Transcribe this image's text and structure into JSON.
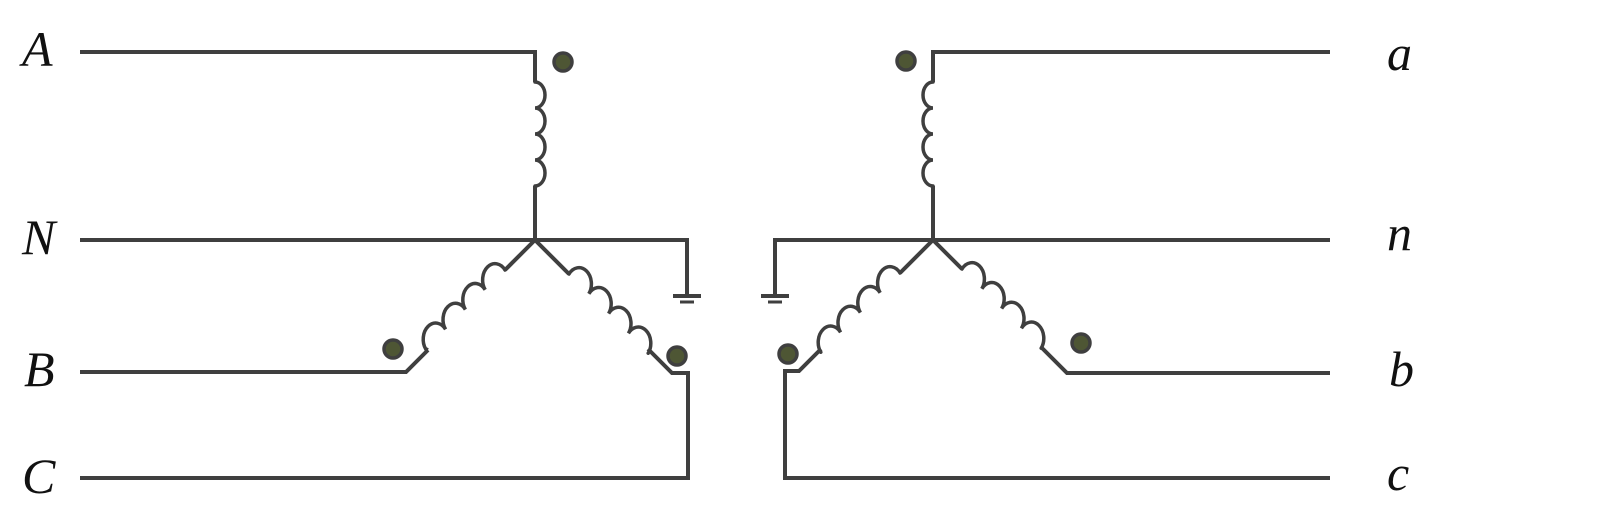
{
  "diagram": {
    "primary_labels": {
      "A": "A",
      "N": "N",
      "B": "B",
      "C": "C"
    },
    "secondary_labels": {
      "a": "a",
      "n": "n",
      "b": "b",
      "c": "c"
    },
    "colors": {
      "line": "#3f3f3f",
      "dot_fill": "#4e5634",
      "text": "#111111",
      "background": "#ffffff"
    },
    "primary_connection": "wye",
    "secondary_connection": "wye",
    "neutrals_grounded": true
  }
}
